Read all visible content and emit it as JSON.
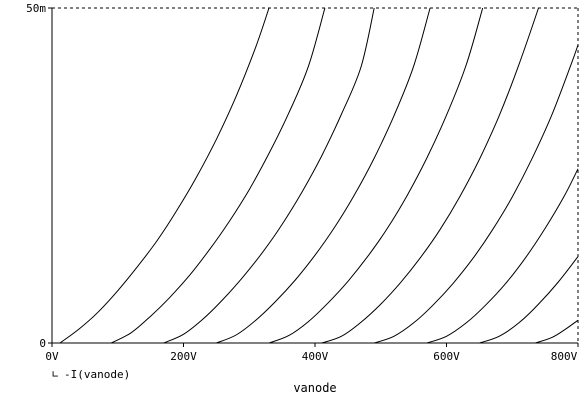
{
  "chart_data": {
    "type": "line",
    "title": "",
    "xlabel": "vanode",
    "ylabel": "",
    "xlim": [
      0,
      800
    ],
    "ylim": [
      0,
      50
    ],
    "x_unit": "V",
    "y_unit": "mA",
    "x_ticks": [
      {
        "value": 0,
        "label": "0V"
      },
      {
        "value": 200,
        "label": "200V"
      },
      {
        "value": 400,
        "label": "400V"
      },
      {
        "value": 600,
        "label": "600V"
      },
      {
        "value": 800,
        "label": "800V"
      }
    ],
    "y_ticks": [
      {
        "value": 0,
        "label": "0"
      },
      {
        "value": 50,
        "label": "50m"
      }
    ],
    "legend": {
      "marker": "∟",
      "label": "-I(vanode)",
      "placement": "bottom-left"
    },
    "grid": "dotted frame (top/right)",
    "series": [
      {
        "x": [
          12,
          40,
          70,
          100,
          130,
          160,
          190,
          220,
          250,
          280,
          310,
          330
        ],
        "y": [
          0,
          2.0,
          4.6,
          7.8,
          11.4,
          15.3,
          19.8,
          24.8,
          30.4,
          36.8,
          44.2,
          50
        ]
      },
      {
        "x": [
          90,
          120,
          150,
          180,
          210,
          240,
          270,
          300,
          330,
          360,
          390,
          415
        ],
        "y": [
          0,
          1.5,
          4.0,
          6.9,
          10.2,
          14.0,
          18.2,
          22.9,
          28.3,
          34.3,
          41.3,
          50
        ]
      },
      {
        "x": [
          170,
          200,
          230,
          260,
          290,
          320,
          350,
          380,
          410,
          440,
          470,
          490
        ],
        "y": [
          0,
          1.3,
          3.6,
          6.5,
          9.8,
          13.5,
          17.7,
          22.5,
          27.9,
          34.1,
          41.2,
          50
        ]
      },
      {
        "x": [
          250,
          280,
          310,
          340,
          370,
          400,
          430,
          460,
          490,
          520,
          550,
          575
        ],
        "y": [
          0,
          1.2,
          3.4,
          6.2,
          9.4,
          13.1,
          17.3,
          22.1,
          27.6,
          33.9,
          41.3,
          50
        ]
      },
      {
        "x": [
          330,
          360,
          390,
          420,
          450,
          480,
          510,
          540,
          570,
          600,
          630,
          655
        ],
        "y": [
          0,
          1.1,
          3.2,
          6.0,
          9.2,
          12.9,
          17.1,
          22.0,
          27.6,
          34.0,
          41.5,
          50
        ]
      },
      {
        "x": [
          410,
          440,
          470,
          500,
          530,
          560,
          590,
          620,
          650,
          680,
          710,
          740
        ],
        "y": [
          0,
          1.0,
          3.1,
          5.8,
          9.0,
          12.7,
          16.9,
          21.8,
          27.4,
          33.9,
          41.5,
          50
        ]
      },
      {
        "x": [
          490,
          520,
          550,
          580,
          610,
          640,
          670,
          700,
          730,
          760,
          790,
          800
        ],
        "y": [
          0,
          1.0,
          3.0,
          5.7,
          8.9,
          12.6,
          16.9,
          21.8,
          27.5,
          34.0,
          41.7,
          44.5
        ]
      },
      {
        "x": [
          570,
          600,
          630,
          660,
          690,
          720,
          750,
          780,
          800
        ],
        "y": [
          0,
          1.0,
          3.0,
          5.7,
          8.9,
          12.7,
          17.1,
          22.1,
          26.0
        ]
      },
      {
        "x": [
          650,
          680,
          710,
          740,
          770,
          800
        ],
        "y": [
          0,
          1.0,
          3.0,
          5.8,
          9.1,
          12.9
        ]
      },
      {
        "x": [
          735,
          760,
          780,
          800
        ],
        "y": [
          0,
          0.8,
          2.0,
          3.4
        ]
      }
    ]
  }
}
